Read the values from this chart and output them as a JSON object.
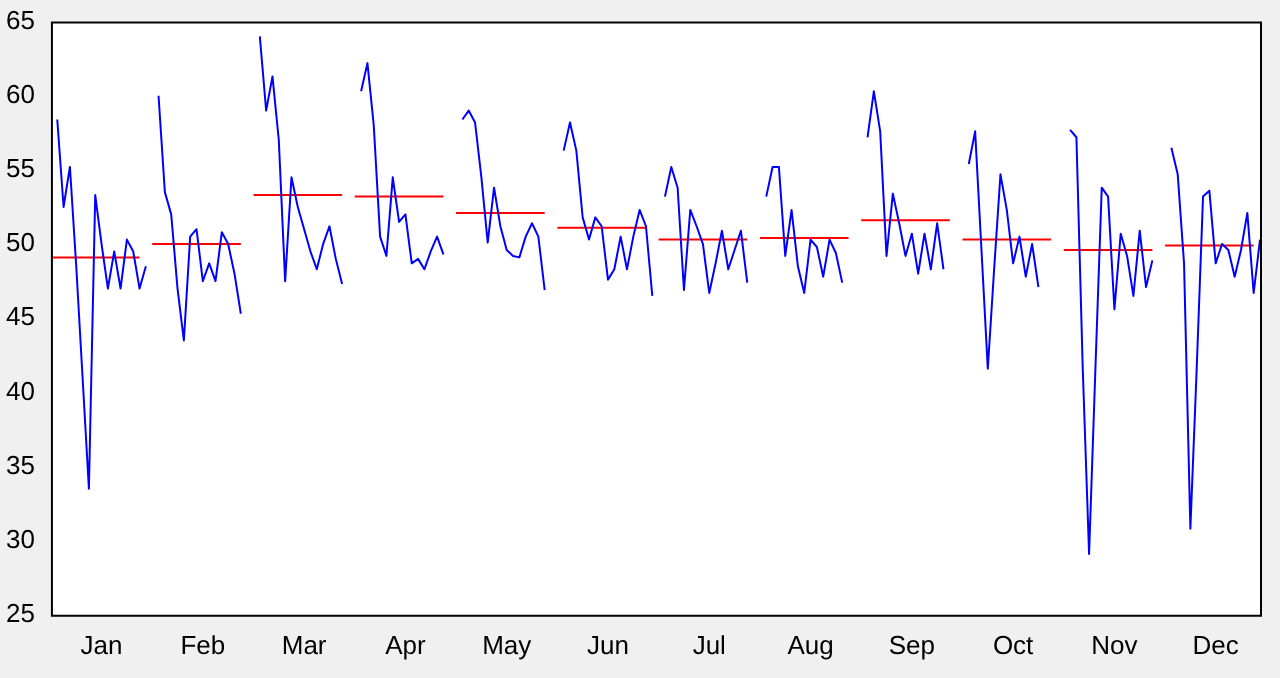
{
  "chart_data": {
    "type": "line",
    "categories": [
      null,
      null,
      null,
      null,
      null,
      null,
      null,
      null,
      "Jan",
      null,
      null,
      null,
      null,
      null,
      null,
      null,
      null,
      null,
      null,
      null,
      null,
      null,
      null,
      null,
      "Feb",
      null,
      null,
      null,
      null,
      null,
      null,
      null,
      null,
      null,
      null,
      null,
      null,
      null,
      null,
      null,
      "Mar",
      null,
      null,
      null,
      null,
      null,
      null,
      null,
      null,
      null,
      null,
      null,
      null,
      null,
      null,
      null,
      "Apr",
      null,
      null,
      null,
      null,
      null,
      null,
      null,
      null,
      null,
      null,
      null,
      null,
      null,
      null,
      null,
      "May",
      null,
      null,
      null,
      null,
      null,
      null,
      null,
      null,
      null,
      null,
      null,
      null,
      null,
      null,
      null,
      "Jun",
      null,
      null,
      null,
      null,
      null,
      null,
      null,
      null,
      null,
      null,
      null,
      null,
      null,
      null,
      null,
      "Jul",
      null,
      null,
      null,
      null,
      null,
      null,
      null,
      null,
      null,
      null,
      null,
      null,
      null,
      null,
      null,
      "Aug",
      null,
      null,
      null,
      null,
      null,
      null,
      null,
      null,
      null,
      null,
      null,
      null,
      null,
      null,
      null,
      "Sep",
      null,
      null,
      null,
      null,
      null,
      null,
      null,
      null,
      null,
      null,
      null,
      null,
      null,
      null,
      null,
      "Oct",
      null,
      null,
      null,
      null,
      null,
      null,
      null,
      null,
      null,
      null,
      null,
      null,
      null,
      null,
      null,
      "Nov",
      null,
      null,
      null,
      null,
      null,
      null,
      null,
      null,
      null,
      null,
      null,
      null,
      null,
      null,
      null,
      "Dec",
      null,
      null,
      null,
      null,
      null,
      null,
      null
    ],
    "ylim": [
      25,
      65
    ],
    "yticks": [
      25,
      30,
      35,
      40,
      45,
      50,
      55,
      60,
      65
    ],
    "grid": false,
    "legend": false,
    "marker": "none",
    "series": [
      {
        "color": "#0000ff",
        "values": [
          null,
          58.4,
          52.5,
          55.2,
          48.5,
          41,
          33.5,
          53.3,
          50,
          47,
          49.5,
          47,
          50.3,
          49.5,
          47,
          48.5,
          null,
          60,
          53.5,
          52,
          47,
          43.5,
          50.5,
          51,
          47.5,
          48.7,
          47.5,
          50.8,
          50,
          48,
          45.3,
          null,
          null,
          64,
          59,
          61.3,
          57,
          47.5,
          54.5,
          52.5,
          51,
          49.5,
          48.3,
          50,
          51.2,
          49,
          47.3,
          null,
          null,
          60.3,
          62.2,
          58,
          50.5,
          49.2,
          54.5,
          51.5,
          52,
          48.7,
          49,
          48.3,
          49.5,
          50.5,
          49.3,
          null,
          null,
          58.4,
          59,
          58.2,
          54.5,
          50.1,
          53.8,
          51.2,
          49.6,
          49.2,
          49.1,
          50.5,
          51.4,
          50.5,
          46.9,
          null,
          null,
          56.3,
          58.2,
          56.3,
          51.8,
          50.3,
          51.8,
          51.2,
          47.6,
          48.3,
          50.5,
          48.3,
          50.5,
          52.3,
          51.2,
          46.5,
          null,
          53.2,
          55.2,
          53.8,
          46.9,
          52.3,
          51.2,
          50,
          46.7,
          48.7,
          50.9,
          48.3,
          49.6,
          50.9,
          47.4,
          null,
          null,
          53.2,
          55.2,
          55.2,
          49.2,
          52.3,
          48.5,
          46.7,
          50.3,
          49.8,
          47.8,
          50.3,
          49.4,
          47.4,
          null,
          null,
          null,
          57.2,
          60.3,
          57.6,
          49.2,
          53.4,
          51.4,
          49.2,
          50.7,
          48,
          50.7,
          48.3,
          51.4,
          48.3,
          null,
          null,
          null,
          55.4,
          57.6,
          49.6,
          41.6,
          48.3,
          54.7,
          52.3,
          48.7,
          50.5,
          47.8,
          50,
          47.1,
          null,
          null,
          null,
          null,
          57.7,
          57.2,
          41.6,
          29.1,
          41.6,
          53.8,
          53.2,
          45.6,
          50.7,
          49.2,
          46.5,
          50.9,
          47.1,
          48.9,
          null,
          null,
          56.5,
          54.7,
          48.7,
          30.8,
          41.6,
          53.2,
          53.6,
          48.7,
          50,
          49.6,
          47.8,
          49.6,
          52.1,
          46.7,
          50.3
        ]
      },
      {
        "color": "#ff0000",
        "values": [
          49.1,
          49.1,
          49.1,
          49.1,
          49.1,
          49.1,
          49.1,
          49.1,
          49.1,
          49.1,
          49.1,
          49.1,
          49.1,
          49.1,
          49.1,
          null,
          50,
          50,
          50,
          50,
          50,
          50,
          50,
          50,
          50,
          50,
          50,
          50,
          50,
          50,
          50,
          null,
          53.3,
          53.3,
          53.3,
          53.3,
          53.3,
          53.3,
          53.3,
          53.3,
          53.3,
          53.3,
          53.3,
          53.3,
          53.3,
          53.3,
          53.3,
          null,
          53.2,
          53.2,
          53.2,
          53.2,
          53.2,
          53.2,
          53.2,
          53.2,
          53.2,
          53.2,
          53.2,
          53.2,
          53.2,
          53.2,
          53.2,
          null,
          52.1,
          52.1,
          52.1,
          52.1,
          52.1,
          52.1,
          52.1,
          52.1,
          52.1,
          52.1,
          52.1,
          52.1,
          52.1,
          52.1,
          52.1,
          null,
          51.1,
          51.1,
          51.1,
          51.1,
          51.1,
          51.1,
          51.1,
          51.1,
          51.1,
          51.1,
          51.1,
          51.1,
          51.1,
          51.1,
          51.1,
          null,
          50.3,
          50.3,
          50.3,
          50.3,
          50.3,
          50.3,
          50.3,
          50.3,
          50.3,
          50.3,
          50.3,
          50.3,
          50.3,
          50.3,
          50.3,
          null,
          50.4,
          50.4,
          50.4,
          50.4,
          50.4,
          50.4,
          50.4,
          50.4,
          50.4,
          50.4,
          50.4,
          50.4,
          50.4,
          50.4,
          50.4,
          null,
          51.6,
          51.6,
          51.6,
          51.6,
          51.6,
          51.6,
          51.6,
          51.6,
          51.6,
          51.6,
          51.6,
          51.6,
          51.6,
          51.6,
          51.6,
          null,
          50.3,
          50.3,
          50.3,
          50.3,
          50.3,
          50.3,
          50.3,
          50.3,
          50.3,
          50.3,
          50.3,
          50.3,
          50.3,
          50.3,
          50.3,
          null,
          49.6,
          49.6,
          49.6,
          49.6,
          49.6,
          49.6,
          49.6,
          49.6,
          49.6,
          49.6,
          49.6,
          49.6,
          49.6,
          49.6,
          49.6,
          null,
          49.9,
          49.9,
          49.9,
          49.9,
          49.9,
          49.9,
          49.9,
          49.9,
          49.9,
          49.9,
          49.9,
          49.9,
          49.9,
          49.9,
          49.9,
          null
        ]
      }
    ]
  }
}
